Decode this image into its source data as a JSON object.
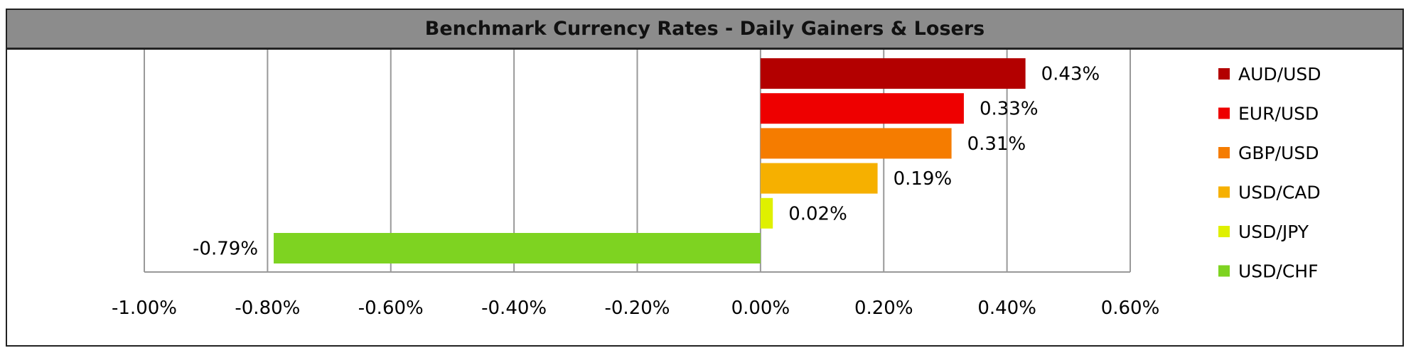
{
  "chart_data": {
    "type": "bar",
    "orientation": "horizontal",
    "title": "Benchmark Currency Rates - Daily Gainers & Losers",
    "categories": [
      "AUD/USD",
      "EUR/USD",
      "GBP/USD",
      "USD/CAD",
      "USD/JPY",
      "USD/CHF"
    ],
    "values": [
      0.43,
      0.33,
      0.31,
      0.19,
      0.02,
      -0.79
    ],
    "value_labels": [
      "0.43%",
      "0.33%",
      "0.31%",
      "0.19%",
      "0.02%",
      "-0.79%"
    ],
    "colors": [
      "#b30000",
      "#ee0000",
      "#f57c00",
      "#f6b000",
      "#dff000",
      "#7ed321"
    ],
    "xlim": [
      -1.0,
      0.6
    ],
    "xticks": [
      -1.0,
      -0.8,
      -0.6,
      -0.4,
      -0.2,
      0.0,
      0.2,
      0.4,
      0.6
    ],
    "xtick_labels": [
      "-1.00%",
      "-0.80%",
      "-0.60%",
      "-0.40%",
      "-0.20%",
      "0.00%",
      "0.20%",
      "0.40%",
      "0.60%"
    ],
    "grid": true,
    "legend": "right"
  }
}
